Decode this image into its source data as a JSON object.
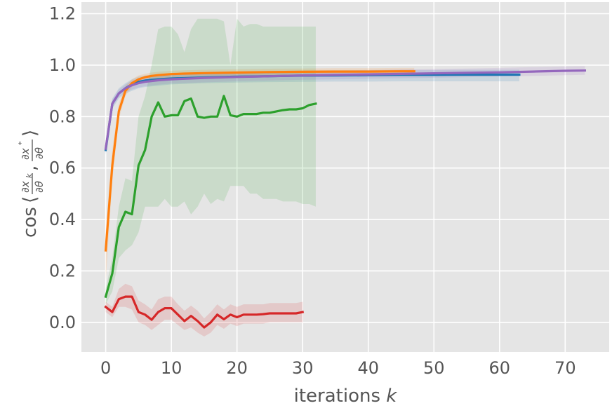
{
  "chart_data": {
    "type": "line",
    "title": "",
    "xlabel": {
      "text": "iterations ",
      "var": "k"
    },
    "ylabel": {
      "prefix": "cos",
      "num1": "∂x",
      "sub1": "k",
      "num2": "∂x",
      "sup2": "*",
      "den": "∂θ",
      "sep": ",",
      "open": "⟨",
      "close": "⟩"
    },
    "xlim": [
      -3.7,
      76.7
    ],
    "ylim": [
      -0.115,
      1.245
    ],
    "xticks": [
      0,
      10,
      20,
      30,
      40,
      50,
      60,
      70
    ],
    "yticks": [
      0.0,
      0.2,
      0.4,
      0.6,
      0.8,
      1.0,
      1.2
    ],
    "ytick_labels": [
      "0.0",
      "0.2",
      "0.4",
      "0.6",
      "0.8",
      "1.0",
      "1.2"
    ],
    "grid": true,
    "background": "#e5e5e5",
    "grid_color": "#ffffff",
    "series": [
      {
        "color": "#1f77b4",
        "x": [
          0,
          1,
          2,
          3,
          4,
          5,
          6,
          8,
          10,
          15,
          20,
          25,
          30,
          35,
          40,
          45,
          50,
          55,
          60,
          63
        ],
        "y": [
          0.67,
          0.85,
          0.89,
          0.91,
          0.925,
          0.935,
          0.94,
          0.945,
          0.948,
          0.952,
          0.955,
          0.957,
          0.959,
          0.96,
          0.961,
          0.962,
          0.962,
          0.963,
          0.963,
          0.963
        ],
        "lower": [
          0.65,
          0.83,
          0.87,
          0.89,
          0.9,
          0.91,
          0.915,
          0.92,
          0.925,
          0.93,
          0.932,
          0.934,
          0.935,
          0.936,
          0.936,
          0.937,
          0.937,
          0.937,
          0.937,
          0.937
        ],
        "upper": [
          0.69,
          0.87,
          0.91,
          0.93,
          0.945,
          0.955,
          0.96,
          0.965,
          0.968,
          0.972,
          0.975,
          0.977,
          0.979,
          0.98,
          0.98,
          0.981,
          0.981,
          0.982,
          0.982,
          0.982
        ]
      },
      {
        "color": "#ff7f0e",
        "x": [
          0,
          1,
          2,
          3,
          4,
          5,
          6,
          7,
          8,
          10,
          12,
          15,
          20,
          25,
          30,
          35,
          40,
          45,
          47
        ],
        "y": [
          0.28,
          0.61,
          0.82,
          0.9,
          0.93,
          0.945,
          0.953,
          0.958,
          0.961,
          0.965,
          0.967,
          0.969,
          0.971,
          0.973,
          0.974,
          0.975,
          0.975,
          0.976,
          0.976
        ],
        "lower": [
          0.16,
          0.55,
          0.79,
          0.88,
          0.915,
          0.93,
          0.94,
          0.945,
          0.948,
          0.952,
          0.954,
          0.956,
          0.958,
          0.96,
          0.961,
          0.962,
          0.962,
          0.963,
          0.963
        ],
        "upper": [
          0.35,
          0.67,
          0.85,
          0.92,
          0.945,
          0.96,
          0.966,
          0.971,
          0.974,
          0.978,
          0.98,
          0.982,
          0.984,
          0.986,
          0.987,
          0.988,
          0.988,
          0.989,
          0.989
        ]
      },
      {
        "color": "#2ca02c",
        "x": [
          0,
          1,
          2,
          3,
          4,
          5,
          6,
          7,
          8,
          9,
          10,
          11,
          12,
          13,
          14,
          15,
          16,
          17,
          18,
          19,
          20,
          21,
          22,
          23,
          24,
          25,
          26,
          27,
          28,
          29,
          30,
          31,
          32
        ],
        "y": [
          0.1,
          0.19,
          0.37,
          0.43,
          0.42,
          0.61,
          0.67,
          0.8,
          0.855,
          0.8,
          0.805,
          0.805,
          0.86,
          0.87,
          0.8,
          0.795,
          0.8,
          0.8,
          0.88,
          0.805,
          0.8,
          0.81,
          0.81,
          0.81,
          0.815,
          0.815,
          0.82,
          0.825,
          0.828,
          0.828,
          0.832,
          0.845,
          0.85
        ],
        "lower": [
          0.07,
          0.12,
          0.25,
          0.28,
          0.3,
          0.35,
          0.45,
          0.45,
          0.45,
          0.48,
          0.45,
          0.45,
          0.47,
          0.42,
          0.45,
          0.5,
          0.46,
          0.48,
          0.47,
          0.53,
          0.53,
          0.53,
          0.5,
          0.5,
          0.48,
          0.48,
          0.48,
          0.47,
          0.47,
          0.47,
          0.46,
          0.46,
          0.45
        ],
        "upper": [
          0.13,
          0.25,
          0.45,
          0.56,
          0.55,
          0.8,
          0.88,
          1.0,
          1.14,
          1.15,
          1.15,
          1.12,
          1.05,
          1.14,
          1.18,
          1.18,
          1.18,
          1.18,
          1.17,
          1.0,
          1.18,
          1.15,
          1.16,
          1.16,
          1.15,
          1.15,
          1.15,
          1.15,
          1.15,
          1.15,
          1.15,
          1.15,
          1.15
        ]
      },
      {
        "color": "#d62728",
        "x": [
          0,
          1,
          2,
          3,
          4,
          5,
          6,
          7,
          8,
          9,
          10,
          11,
          12,
          13,
          14,
          15,
          16,
          17,
          18,
          19,
          20,
          21,
          22,
          23,
          24,
          25,
          26,
          27,
          28,
          29,
          30
        ],
        "y": [
          0.06,
          0.04,
          0.09,
          0.1,
          0.1,
          0.04,
          0.03,
          0.01,
          0.04,
          0.055,
          0.055,
          0.03,
          0.005,
          0.025,
          0.005,
          -0.02,
          0.0,
          0.03,
          0.012,
          0.03,
          0.02,
          0.03,
          0.03,
          0.03,
          0.032,
          0.035,
          0.035,
          0.035,
          0.035,
          0.035,
          0.04
        ],
        "lower": [
          0.04,
          0.02,
          0.06,
          0.06,
          0.05,
          0.0,
          -0.01,
          -0.03,
          -0.01,
          0.01,
          0.01,
          -0.01,
          -0.03,
          -0.02,
          -0.04,
          -0.055,
          -0.04,
          -0.01,
          -0.025,
          -0.005,
          -0.015,
          -0.005,
          -0.005,
          -0.005,
          -0.005,
          0.0,
          0.0,
          0.0,
          0.0,
          0.0,
          0.0
        ],
        "upper": [
          0.08,
          0.06,
          0.13,
          0.15,
          0.14,
          0.085,
          0.07,
          0.05,
          0.09,
          0.1,
          0.1,
          0.07,
          0.045,
          0.065,
          0.045,
          0.015,
          0.04,
          0.07,
          0.05,
          0.07,
          0.06,
          0.07,
          0.07,
          0.07,
          0.07,
          0.075,
          0.075,
          0.075,
          0.075,
          0.075,
          0.08
        ]
      },
      {
        "color": "#9467bd",
        "x": [
          0,
          1,
          2,
          3,
          4,
          5,
          6,
          8,
          10,
          15,
          20,
          25,
          30,
          35,
          40,
          45,
          50,
          55,
          60,
          65,
          70,
          73
        ],
        "y": [
          0.675,
          0.85,
          0.89,
          0.91,
          0.922,
          0.93,
          0.935,
          0.941,
          0.945,
          0.95,
          0.954,
          0.957,
          0.96,
          0.962,
          0.964,
          0.966,
          0.968,
          0.97,
          0.972,
          0.975,
          0.978,
          0.979
        ],
        "lower": [
          0.66,
          0.835,
          0.875,
          0.895,
          0.905,
          0.913,
          0.918,
          0.924,
          0.928,
          0.933,
          0.937,
          0.94,
          0.943,
          0.945,
          0.947,
          0.949,
          0.951,
          0.953,
          0.955,
          0.958,
          0.961,
          0.962
        ],
        "upper": [
          0.69,
          0.865,
          0.905,
          0.925,
          0.939,
          0.947,
          0.952,
          0.958,
          0.962,
          0.967,
          0.971,
          0.974,
          0.977,
          0.979,
          0.981,
          0.983,
          0.985,
          0.987,
          0.989,
          0.992,
          0.995,
          0.996
        ]
      }
    ]
  }
}
